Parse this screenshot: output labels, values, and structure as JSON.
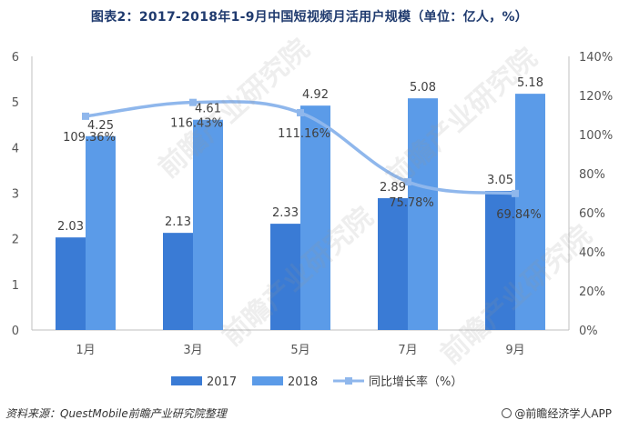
{
  "title": "图表2：2017-2018年1-9月中国短视频月活用户规模（单位：亿人，%）",
  "source": "资料来源：QuestMobile前瞻产业研究院整理",
  "brand": "@前瞻经济学人APP",
  "watermark": "前瞻产业研究院",
  "chart_data": {
    "type": "bar",
    "title": "图表2：2017-2018年1-9月中国短视频月活用户规模（单位：亿人，%）",
    "categories": [
      "1月",
      "3月",
      "5月",
      "7月",
      "9月"
    ],
    "series": [
      {
        "name": "2017",
        "type": "bar",
        "axis": "left",
        "color": "#3a7bd5",
        "values": [
          2.03,
          2.13,
          2.33,
          2.89,
          3.05
        ],
        "labels": [
          "2.03",
          "2.13",
          "2.33",
          "2.89",
          "3.05"
        ]
      },
      {
        "name": "2018",
        "type": "bar",
        "axis": "left",
        "color": "#5b9be8",
        "values": [
          4.25,
          4.61,
          4.92,
          5.08,
          5.18
        ],
        "labels": [
          "4.25",
          "4.61",
          "4.92",
          "5.08",
          "5.18"
        ]
      },
      {
        "name": "同比增长率（%）",
        "type": "line",
        "axis": "right",
        "color": "#8fb7ec",
        "values": [
          109.36,
          116.43,
          111.16,
          75.78,
          69.84
        ],
        "labels": [
          "109.36%",
          "116.43%",
          "111.16%",
          "75.78%",
          "69.84%"
        ]
      }
    ],
    "y_left": {
      "min": 0,
      "max": 6,
      "ticks": [
        "0",
        "1",
        "2",
        "3",
        "4",
        "5",
        "6"
      ]
    },
    "y_right": {
      "min": 0,
      "max": 140,
      "ticks": [
        "0%",
        "20%",
        "40%",
        "60%",
        "80%",
        "100%",
        "120%",
        "140%"
      ]
    },
    "legend_position": "bottom",
    "grid": false
  }
}
